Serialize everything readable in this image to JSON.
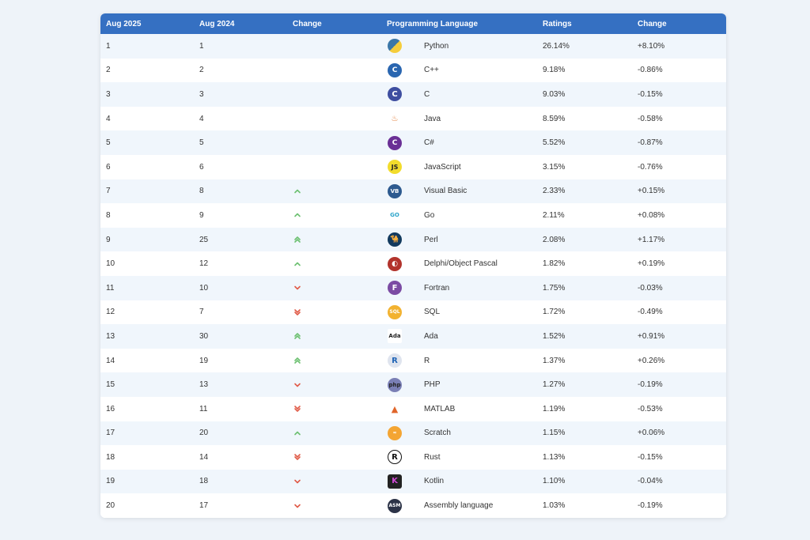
{
  "headers": {
    "rank_now": "Aug 2025",
    "rank_prev": "Aug 2024",
    "change": "Change",
    "language": "Programming Language",
    "ratings": "Ratings",
    "change_pct": "Change"
  },
  "colors": {
    "header_bg": "#3570c2",
    "up": "#6cc070",
    "down": "#e05a47"
  },
  "rows": [
    {
      "now": "1",
      "prev": "1",
      "trend": "none",
      "icon": "python-icon",
      "language": "Python",
      "rating": "26.14%",
      "change": "+8.10%"
    },
    {
      "now": "2",
      "prev": "2",
      "trend": "none",
      "icon": "cpp-icon",
      "language": "C++",
      "rating": "9.18%",
      "change": "-0.86%"
    },
    {
      "now": "3",
      "prev": "3",
      "trend": "none",
      "icon": "c-icon",
      "language": "C",
      "rating": "9.03%",
      "change": "-0.15%"
    },
    {
      "now": "4",
      "prev": "4",
      "trend": "none",
      "icon": "java-icon",
      "language": "Java",
      "rating": "8.59%",
      "change": "-0.58%"
    },
    {
      "now": "5",
      "prev": "5",
      "trend": "none",
      "icon": "csharp-icon",
      "language": "C#",
      "rating": "5.52%",
      "change": "-0.87%"
    },
    {
      "now": "6",
      "prev": "6",
      "trend": "none",
      "icon": "javascript-icon",
      "language": "JavaScript",
      "rating": "3.15%",
      "change": "-0.76%"
    },
    {
      "now": "7",
      "prev": "8",
      "trend": "up",
      "icon": "visual-basic-icon",
      "language": "Visual Basic",
      "rating": "2.33%",
      "change": "+0.15%"
    },
    {
      "now": "8",
      "prev": "9",
      "trend": "up",
      "icon": "go-icon",
      "language": "Go",
      "rating": "2.11%",
      "change": "+0.08%"
    },
    {
      "now": "9",
      "prev": "25",
      "trend": "up2",
      "icon": "perl-icon",
      "language": "Perl",
      "rating": "2.08%",
      "change": "+1.17%"
    },
    {
      "now": "10",
      "prev": "12",
      "trend": "up",
      "icon": "delphi-icon",
      "language": "Delphi/Object Pascal",
      "rating": "1.82%",
      "change": "+0.19%"
    },
    {
      "now": "11",
      "prev": "10",
      "trend": "down",
      "icon": "fortran-icon",
      "language": "Fortran",
      "rating": "1.75%",
      "change": "-0.03%"
    },
    {
      "now": "12",
      "prev": "7",
      "trend": "down2",
      "icon": "sql-icon",
      "language": "SQL",
      "rating": "1.72%",
      "change": "-0.49%"
    },
    {
      "now": "13",
      "prev": "30",
      "trend": "up2",
      "icon": "ada-icon",
      "language": "Ada",
      "rating": "1.52%",
      "change": "+0.91%"
    },
    {
      "now": "14",
      "prev": "19",
      "trend": "up2",
      "icon": "r-icon",
      "language": "R",
      "rating": "1.37%",
      "change": "+0.26%"
    },
    {
      "now": "15",
      "prev": "13",
      "trend": "down",
      "icon": "php-icon",
      "language": "PHP",
      "rating": "1.27%",
      "change": "-0.19%"
    },
    {
      "now": "16",
      "prev": "11",
      "trend": "down2",
      "icon": "matlab-icon",
      "language": "MATLAB",
      "rating": "1.19%",
      "change": "-0.53%"
    },
    {
      "now": "17",
      "prev": "20",
      "trend": "up",
      "icon": "scratch-icon",
      "language": "Scratch",
      "rating": "1.15%",
      "change": "+0.06%"
    },
    {
      "now": "18",
      "prev": "14",
      "trend": "down2",
      "icon": "rust-icon",
      "language": "Rust",
      "rating": "1.13%",
      "change": "-0.15%"
    },
    {
      "now": "19",
      "prev": "18",
      "trend": "down",
      "icon": "kotlin-icon",
      "language": "Kotlin",
      "rating": "1.10%",
      "change": "-0.04%"
    },
    {
      "now": "20",
      "prev": "17",
      "trend": "down",
      "icon": "assembly-icon",
      "language": "Assembly language",
      "rating": "1.03%",
      "change": "-0.19%"
    }
  ],
  "icon_text": {
    "javascript-icon": "JS",
    "visual-basic-icon": "VB",
    "go-icon": "GO",
    "fortran-icon": "F",
    "sql-icon": "SQL",
    "ada-icon": "Ada",
    "r-icon": "R",
    "php-icon": "php",
    "rust-icon": "R",
    "assembly-icon": "ASM"
  }
}
